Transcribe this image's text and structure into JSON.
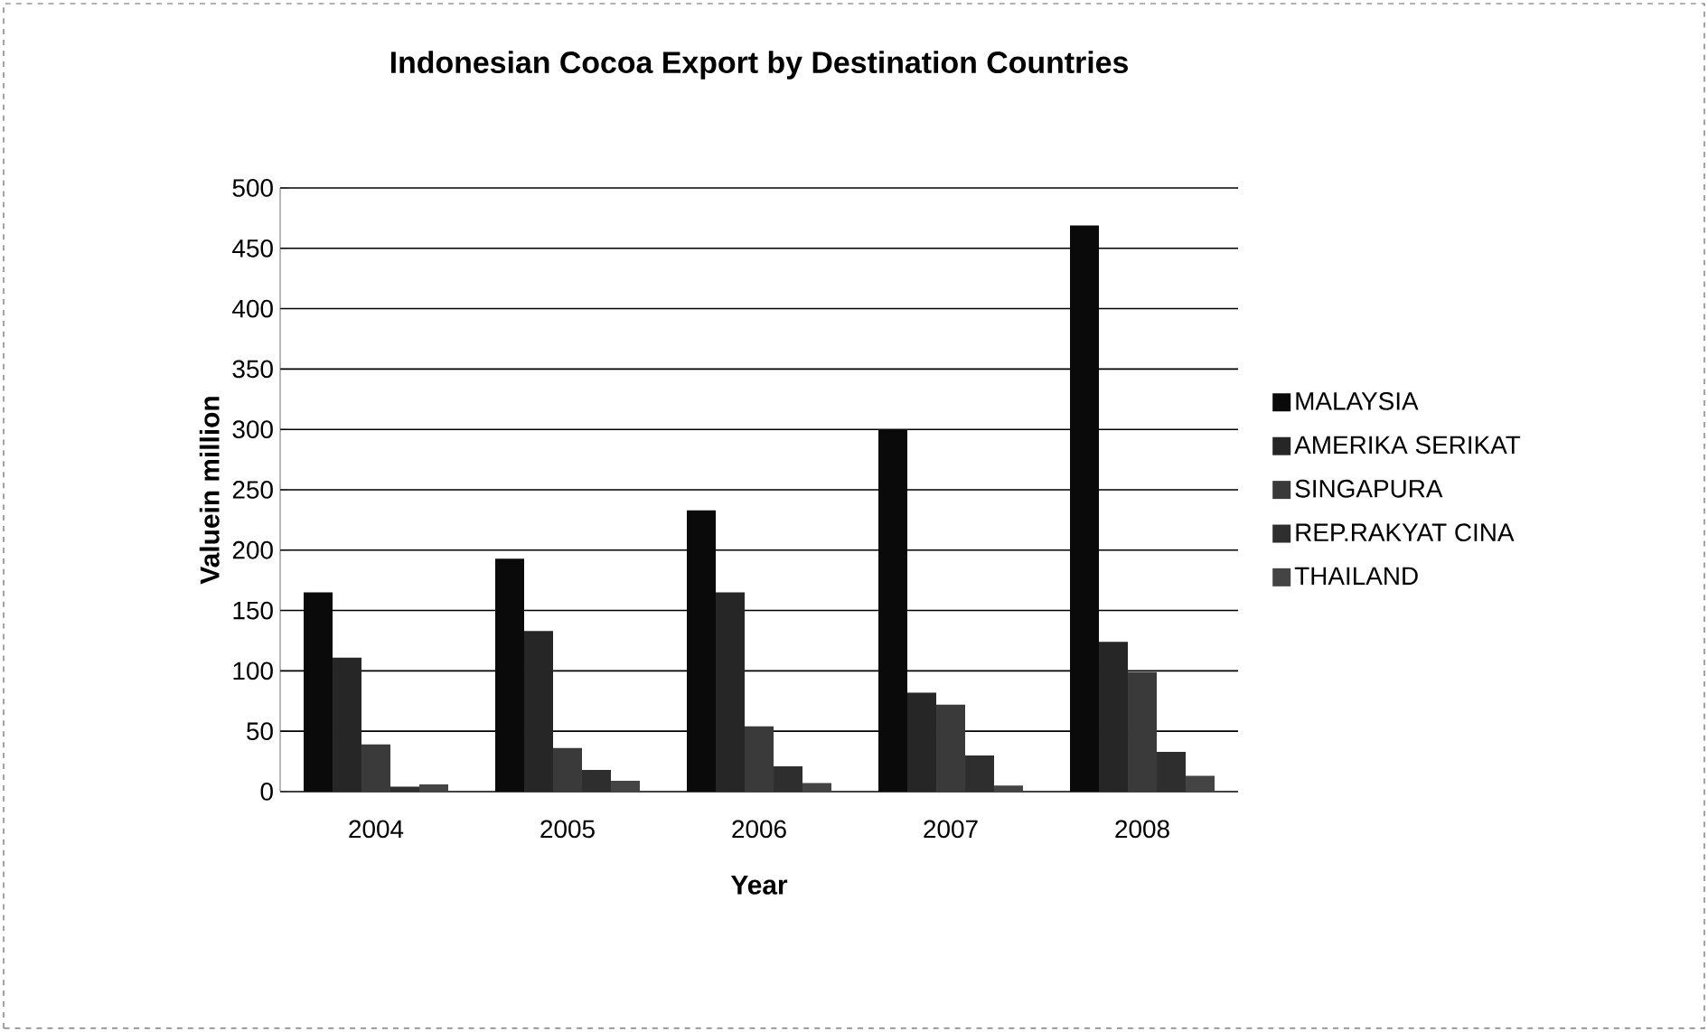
{
  "chart_data": {
    "type": "bar",
    "title": "Indonesian Cocoa Export by Destination Countries",
    "xlabel": "Year",
    "ylabel": "Valuein million",
    "categories": [
      "2004",
      "2005",
      "2006",
      "2007",
      "2008"
    ],
    "series": [
      {
        "name": "MALAYSIA",
        "color": "#0a0a0a",
        "values": [
          165,
          193,
          233,
          300,
          469
        ]
      },
      {
        "name": "AMERIKA SERIKAT",
        "color": "#262626",
        "values": [
          111,
          133,
          165,
          82,
          124
        ]
      },
      {
        "name": "SINGAPURA",
        "color": "#3a3a3a",
        "values": [
          39,
          36,
          54,
          72,
          99
        ]
      },
      {
        "name": "REP.RAKYAT CINA",
        "color": "#2e2e2e",
        "values": [
          4,
          18,
          21,
          30,
          33
        ]
      },
      {
        "name": "THAILAND",
        "color": "#444444",
        "values": [
          6,
          9,
          7,
          5,
          13
        ]
      }
    ],
    "ylim": [
      0,
      500
    ],
    "yticks": [
      0,
      50,
      100,
      150,
      200,
      250,
      300,
      350,
      400,
      450,
      500
    ],
    "grid": "y",
    "legend": "right"
  }
}
